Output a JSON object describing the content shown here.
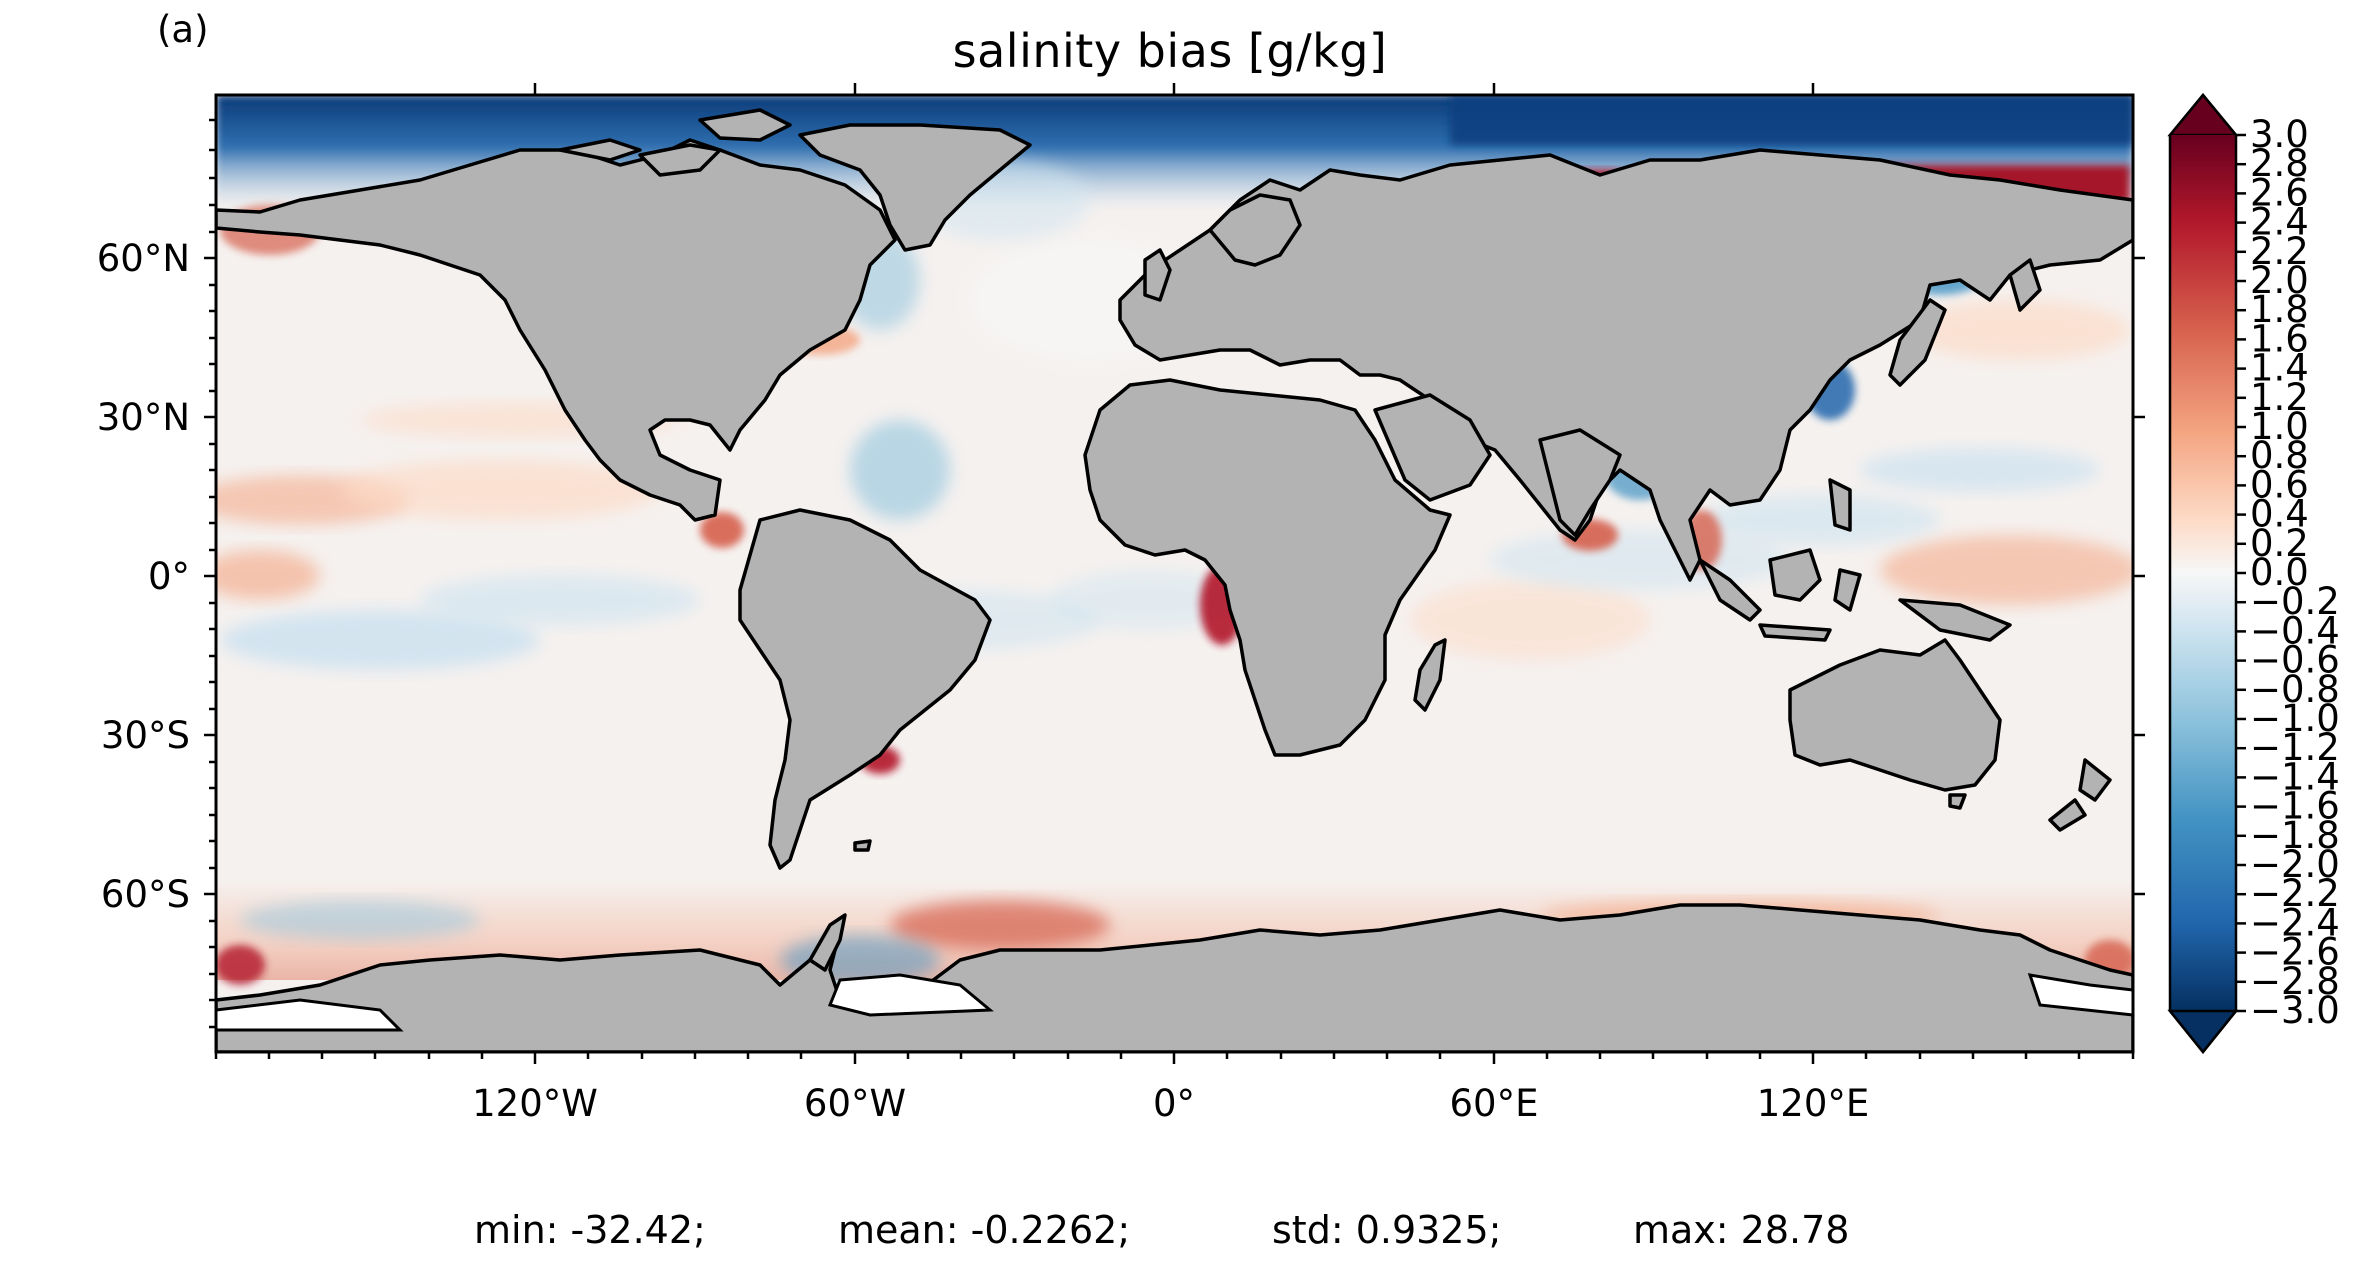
{
  "panel_label": "(a)",
  "title": "salinity bias [g/kg]",
  "colors": {
    "land": "#b3b3b3",
    "coast": "#000000",
    "neutral_ocean": "#f5f1ef",
    "colormap": [
      "#053061",
      "#2166ac",
      "#4393c3",
      "#92c5de",
      "#d1e5f0",
      "#f7f7f7",
      "#fddbc7",
      "#f4a582",
      "#d6604d",
      "#b2182b",
      "#67001f"
    ]
  },
  "map": {
    "projection": "PlateCarree",
    "lat_ticks": [
      "60°N",
      "30°N",
      "0°",
      "30°S",
      "60°S"
    ],
    "lon_ticks": [
      "120°W",
      "60°W",
      "0°",
      "60°E",
      "120°E"
    ]
  },
  "colorbar": {
    "min": -3.0,
    "max": 3.0,
    "extend": "both",
    "tick_labels": [
      "3.0",
      "2.8",
      "2.6",
      "2.4",
      "2.2",
      "2.0",
      "1.8",
      "1.6",
      "1.4",
      "1.2",
      "1.0",
      "0.8",
      "0.6",
      "0.4",
      "0.2",
      "0.0",
      "−0.2",
      "−0.4",
      "−0.6",
      "−0.8",
      "−1.0",
      "−1.2",
      "−1.4",
      "−1.6",
      "−1.8",
      "−2.0",
      "−2.2",
      "−2.4",
      "−2.6",
      "−2.8",
      "−3.0"
    ]
  },
  "stats": {
    "min": "min: -32.42;",
    "mean": "mean: -0.2262;",
    "std": "std: 0.9325;",
    "max": "max: 28.78"
  }
}
